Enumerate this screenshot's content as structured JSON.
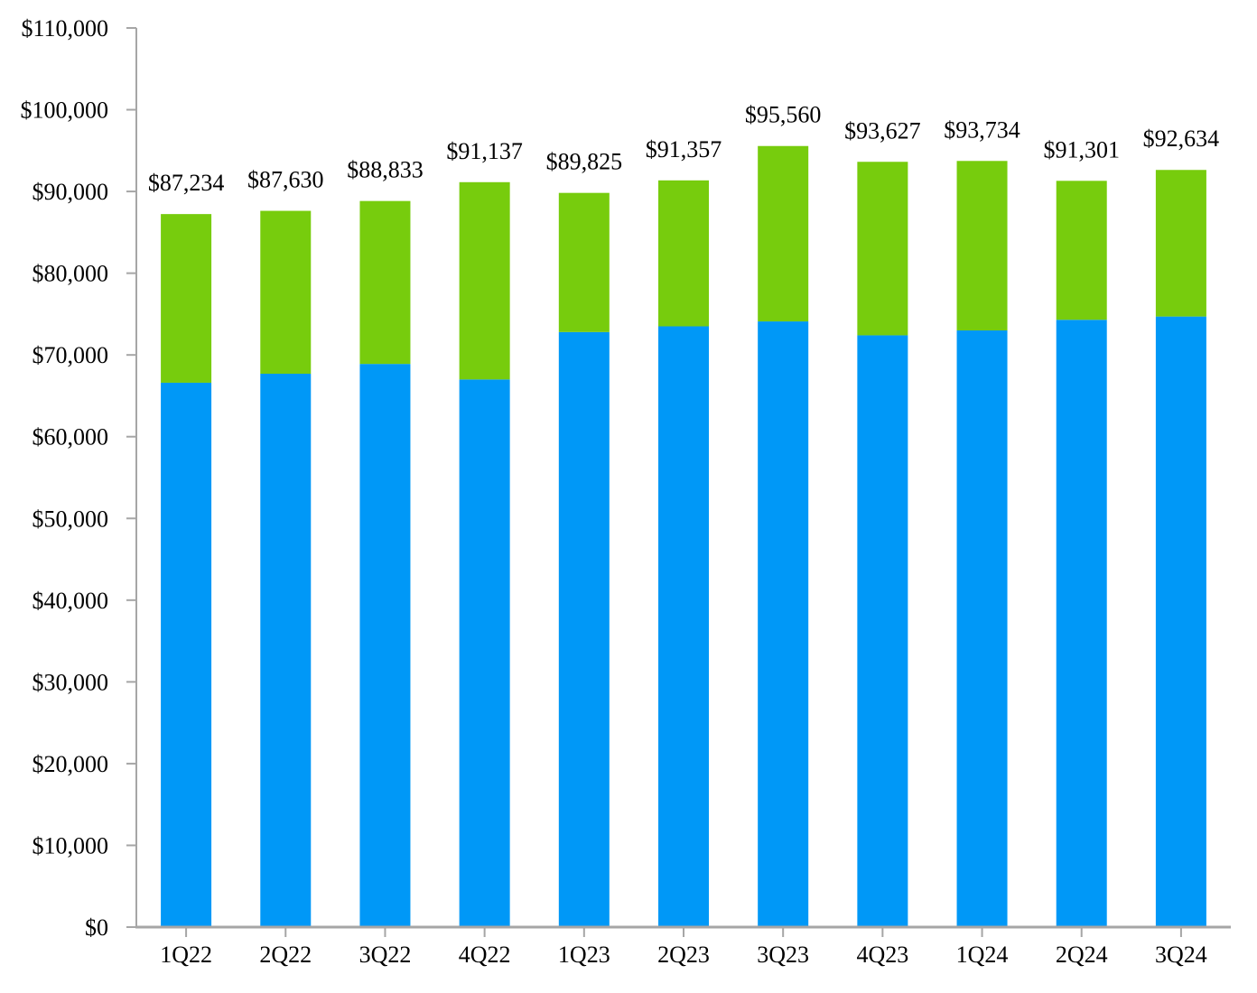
{
  "chart_data": {
    "type": "bar",
    "stacked": true,
    "title": "",
    "xlabel": "",
    "ylabel": "",
    "grid": false,
    "legend": "none",
    "background_color": "#ffffff",
    "axis_color": "#a6a6a6",
    "text_color": "#000000",
    "categories": [
      "1Q22",
      "2Q22",
      "3Q22",
      "4Q22",
      "1Q23",
      "2Q23",
      "3Q23",
      "4Q23",
      "1Q24",
      "2Q24",
      "3Q24"
    ],
    "series": [
      {
        "name": "bottom-segment-blue",
        "color": "#0098f7",
        "values": [
          66600,
          67700,
          68900,
          67000,
          72800,
          73500,
          74100,
          72400,
          73000,
          74300,
          74700
        ]
      },
      {
        "name": "top-segment-green",
        "color": "#77cc0d",
        "values": [
          20634,
          19930,
          19933,
          24137,
          17025,
          17857,
          21460,
          21227,
          20734,
          17001,
          17934
        ]
      }
    ],
    "totals": [
      87234,
      87630,
      88833,
      91137,
      89825,
      91357,
      95560,
      93627,
      93734,
      91301,
      92634
    ],
    "total_labels": [
      "$87,234",
      "$87,630",
      "$88,833",
      "$91,137",
      "$89,825",
      "$91,357",
      "$95,560",
      "$93,627",
      "$93,734",
      "$91,301",
      "$92,634"
    ],
    "ylim": [
      0,
      110000
    ],
    "ytick_step": 10000,
    "ytick_labels": [
      "$0",
      "$10,000",
      "$20,000",
      "$30,000",
      "$40,000",
      "$50,000",
      "$60,000",
      "$70,000",
      "$80,000",
      "$90,000",
      "$100,000",
      "$110,000"
    ]
  }
}
